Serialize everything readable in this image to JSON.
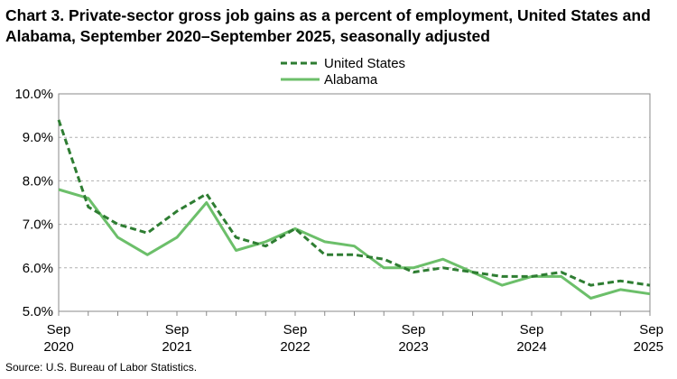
{
  "title": "Chart 3. Private-sector gross job gains as a percent of employment, United States and Alabama, September 2020–September 2025, seasonally adjusted",
  "source": "Source: U.S. Bureau of Labor Statistics.",
  "colors": {
    "united_states": "#2e7d32",
    "alabama": "#6cbf6a",
    "grid": "#b0b0b0",
    "axis": "#888888"
  },
  "chart_data": {
    "type": "line",
    "title": "Chart 3. Private-sector gross job gains as a percent of employment, United States and Alabama, September 2020–September 2025, seasonally adjusted",
    "x": [
      "Sep 2020",
      "Dec 2020",
      "Mar 2021",
      "Jun 2021",
      "Sep 2021",
      "Dec 2021",
      "Mar 2022",
      "Jun 2022",
      "Sep 2022",
      "Dec 2022",
      "Mar 2023",
      "Jun 2023",
      "Sep 2023",
      "Dec 2023",
      "Mar 2024",
      "Jun 2024",
      "Sep 2024",
      "Dec 2024",
      "Mar 2025",
      "Jun 2025",
      "Sep 2025"
    ],
    "x_tick_labels": [
      {
        "month": "Sep",
        "year": "2020"
      },
      {
        "month": "Sep",
        "year": "2021"
      },
      {
        "month": "Sep",
        "year": "2022"
      },
      {
        "month": "Sep",
        "year": "2023"
      },
      {
        "month": "Sep",
        "year": "2024"
      },
      {
        "month": "Sep",
        "year": "2025"
      }
    ],
    "y_ticks": [
      "5.0%",
      "6.0%",
      "7.0%",
      "8.0%",
      "9.0%",
      "10.0%"
    ],
    "ylim": [
      5.0,
      10.0
    ],
    "grid": "horizontal dashed",
    "legend_position": "top",
    "series": [
      {
        "name": "United States",
        "style": "dashed",
        "values": [
          9.4,
          7.4,
          7.0,
          6.8,
          7.3,
          7.7,
          6.7,
          6.5,
          6.9,
          6.3,
          6.3,
          6.2,
          5.9,
          6.0,
          5.9,
          5.8,
          5.8,
          5.9,
          5.6,
          5.7,
          5.6
        ]
      },
      {
        "name": "Alabama",
        "style": "solid",
        "values": [
          7.8,
          7.6,
          6.7,
          6.3,
          6.7,
          7.5,
          6.4,
          6.6,
          6.9,
          6.6,
          6.5,
          6.0,
          6.0,
          6.2,
          5.9,
          5.6,
          5.8,
          5.8,
          5.3,
          5.5,
          5.4
        ]
      }
    ]
  }
}
